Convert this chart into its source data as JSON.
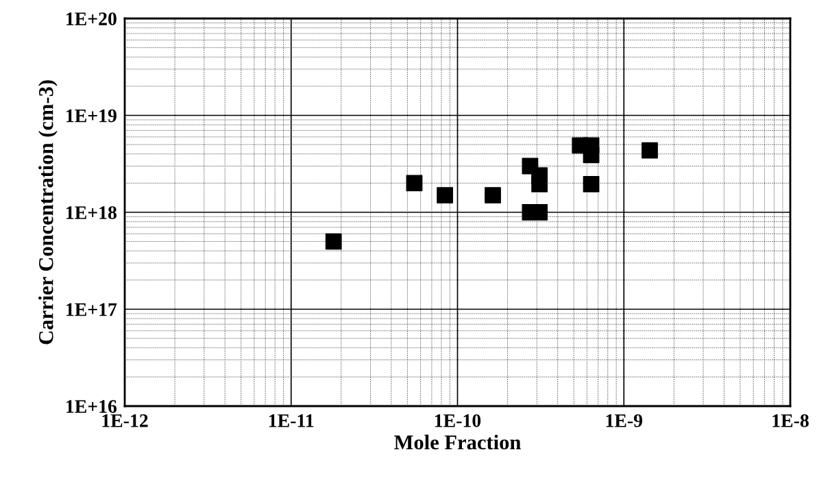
{
  "chart_data": {
    "type": "scatter",
    "xlabel": "Mole Fraction",
    "ylabel": "Carrier Concentration (cm-3)",
    "log": "xy",
    "grid": true,
    "marker": "square",
    "legend": false,
    "xlim": [
      1e-12,
      1e-08
    ],
    "ylim": [
      1e+16,
      1e+20
    ],
    "xticks": [
      {
        "value": 1e-12,
        "label": "1E-12"
      },
      {
        "value": 1e-11,
        "label": "1E-11"
      },
      {
        "value": 1e-10,
        "label": "1E-10"
      },
      {
        "value": 1e-09,
        "label": "1E-9"
      },
      {
        "value": 1e-08,
        "label": "1E-8"
      }
    ],
    "yticks": [
      {
        "value": 1e+16,
        "label": "1E+16"
      },
      {
        "value": 1e+17,
        "label": "1E+17"
      },
      {
        "value": 1e+18,
        "label": "1E+18"
      },
      {
        "value": 1e+19,
        "label": "1E+19"
      },
      {
        "value": 1e+20,
        "label": "1E+20"
      }
    ],
    "series": [
      {
        "color": "#000000",
        "x": [
          1.8e-11,
          5.5e-11,
          8.4e-11,
          1.63e-10,
          2.73e-10,
          3.11e-10,
          3.11e-10,
          2.73e-10,
          3.11e-10,
          5.45e-10,
          6.36e-10,
          6.36e-10,
          6.36e-10,
          1.43e-09
        ],
        "values": [
          5e+17,
          2e+18,
          1.5e+18,
          1.5e+18,
          3e+18,
          2.4e+18,
          1.95e+18,
          1e+18,
          1e+18,
          4.9e+18,
          4.9e+18,
          3.9e+18,
          1.95e+18,
          4.35e+18
        ]
      }
    ]
  }
}
